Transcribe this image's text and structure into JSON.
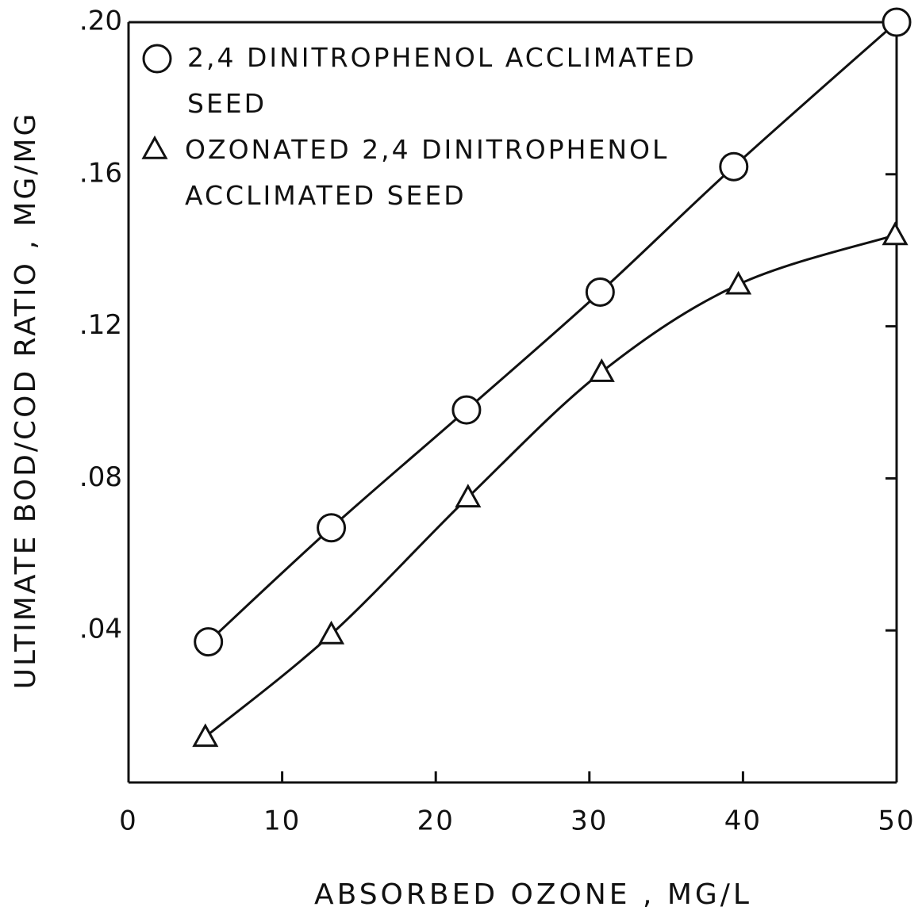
{
  "chart_data": {
    "type": "line",
    "x_label": "ABSORBED OZONE , MG/L",
    "y_label": "ULTIMATE BOD/COD RATIO , MG/MG",
    "xlim": [
      0,
      50
    ],
    "ylim": [
      0,
      0.2
    ],
    "xticks": [
      0,
      10,
      20,
      30,
      40,
      50
    ],
    "yticks": [
      {
        "value": 0.04,
        "label": ".04"
      },
      {
        "value": 0.08,
        "label": ".08"
      },
      {
        "value": 0.12,
        "label": ".12"
      },
      {
        "value": 0.16,
        "label": ".16"
      },
      {
        "value": 0.2,
        "label": ".20"
      }
    ],
    "legend": "upper left",
    "series": [
      {
        "name": "2,4 DINITROPHENOL ACCLIMATED SEED",
        "color": "#111111",
        "marker": "circle",
        "x": [
          5.2,
          13.2,
          22.0,
          30.7,
          39.4,
          50
        ],
        "values": [
          0.037,
          0.067,
          0.098,
          0.129,
          0.162,
          0.2
        ]
      },
      {
        "name": "OZONATED 2,4 DINITROPHENOL ACCLIMATED SEED",
        "color": "#111111",
        "marker": "triangle",
        "x": [
          5.0,
          13.2,
          22.1,
          30.8,
          39.7,
          49.9
        ],
        "values": [
          0.012,
          0.039,
          0.075,
          0.108,
          0.131,
          0.144
        ]
      }
    ]
  }
}
